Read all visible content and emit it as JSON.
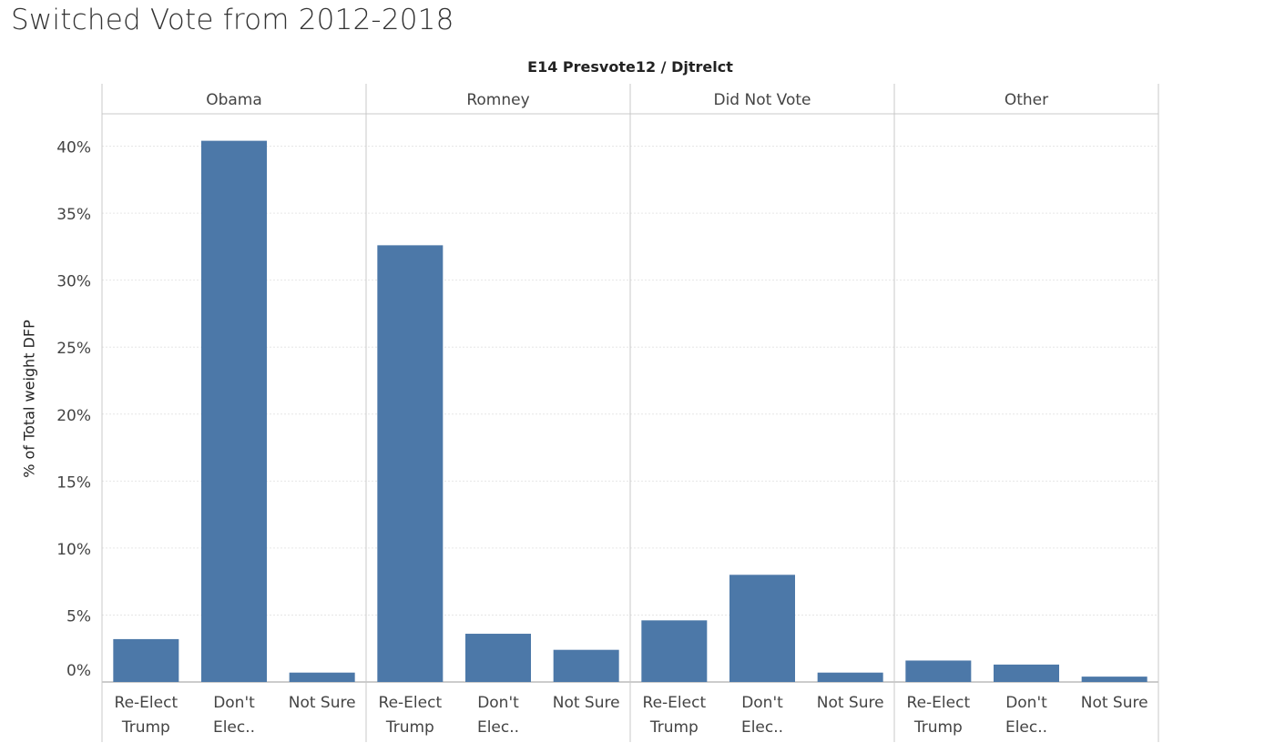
{
  "title": "Switched Vote from 2012-2018",
  "chart_data": {
    "type": "bar",
    "header": "E14 Presvote12 / Djtrelct",
    "ylabel": "% of Total weight DFP",
    "ylim": [
      0,
      42
    ],
    "yticks": [
      0,
      5,
      10,
      15,
      20,
      25,
      30,
      35,
      40
    ],
    "ytick_labels": [
      "0%",
      "5%",
      "10%",
      "15%",
      "20%",
      "25%",
      "30%",
      "35%",
      "40%"
    ],
    "categories": [
      [
        "Re-Elect",
        "Trump"
      ],
      [
        "Don't",
        "Elec.."
      ],
      [
        "Not Sure"
      ]
    ],
    "panels": [
      {
        "name": "Obama",
        "values": [
          3.2,
          40.4,
          0.7
        ]
      },
      {
        "name": "Romney",
        "values": [
          32.6,
          3.6,
          2.4
        ]
      },
      {
        "name": "Did Not Vote",
        "values": [
          4.6,
          8.0,
          0.7
        ]
      },
      {
        "name": "Other",
        "values": [
          1.6,
          1.3,
          0.4
        ]
      }
    ],
    "bar_color": "#4c78a8",
    "grid": true
  }
}
